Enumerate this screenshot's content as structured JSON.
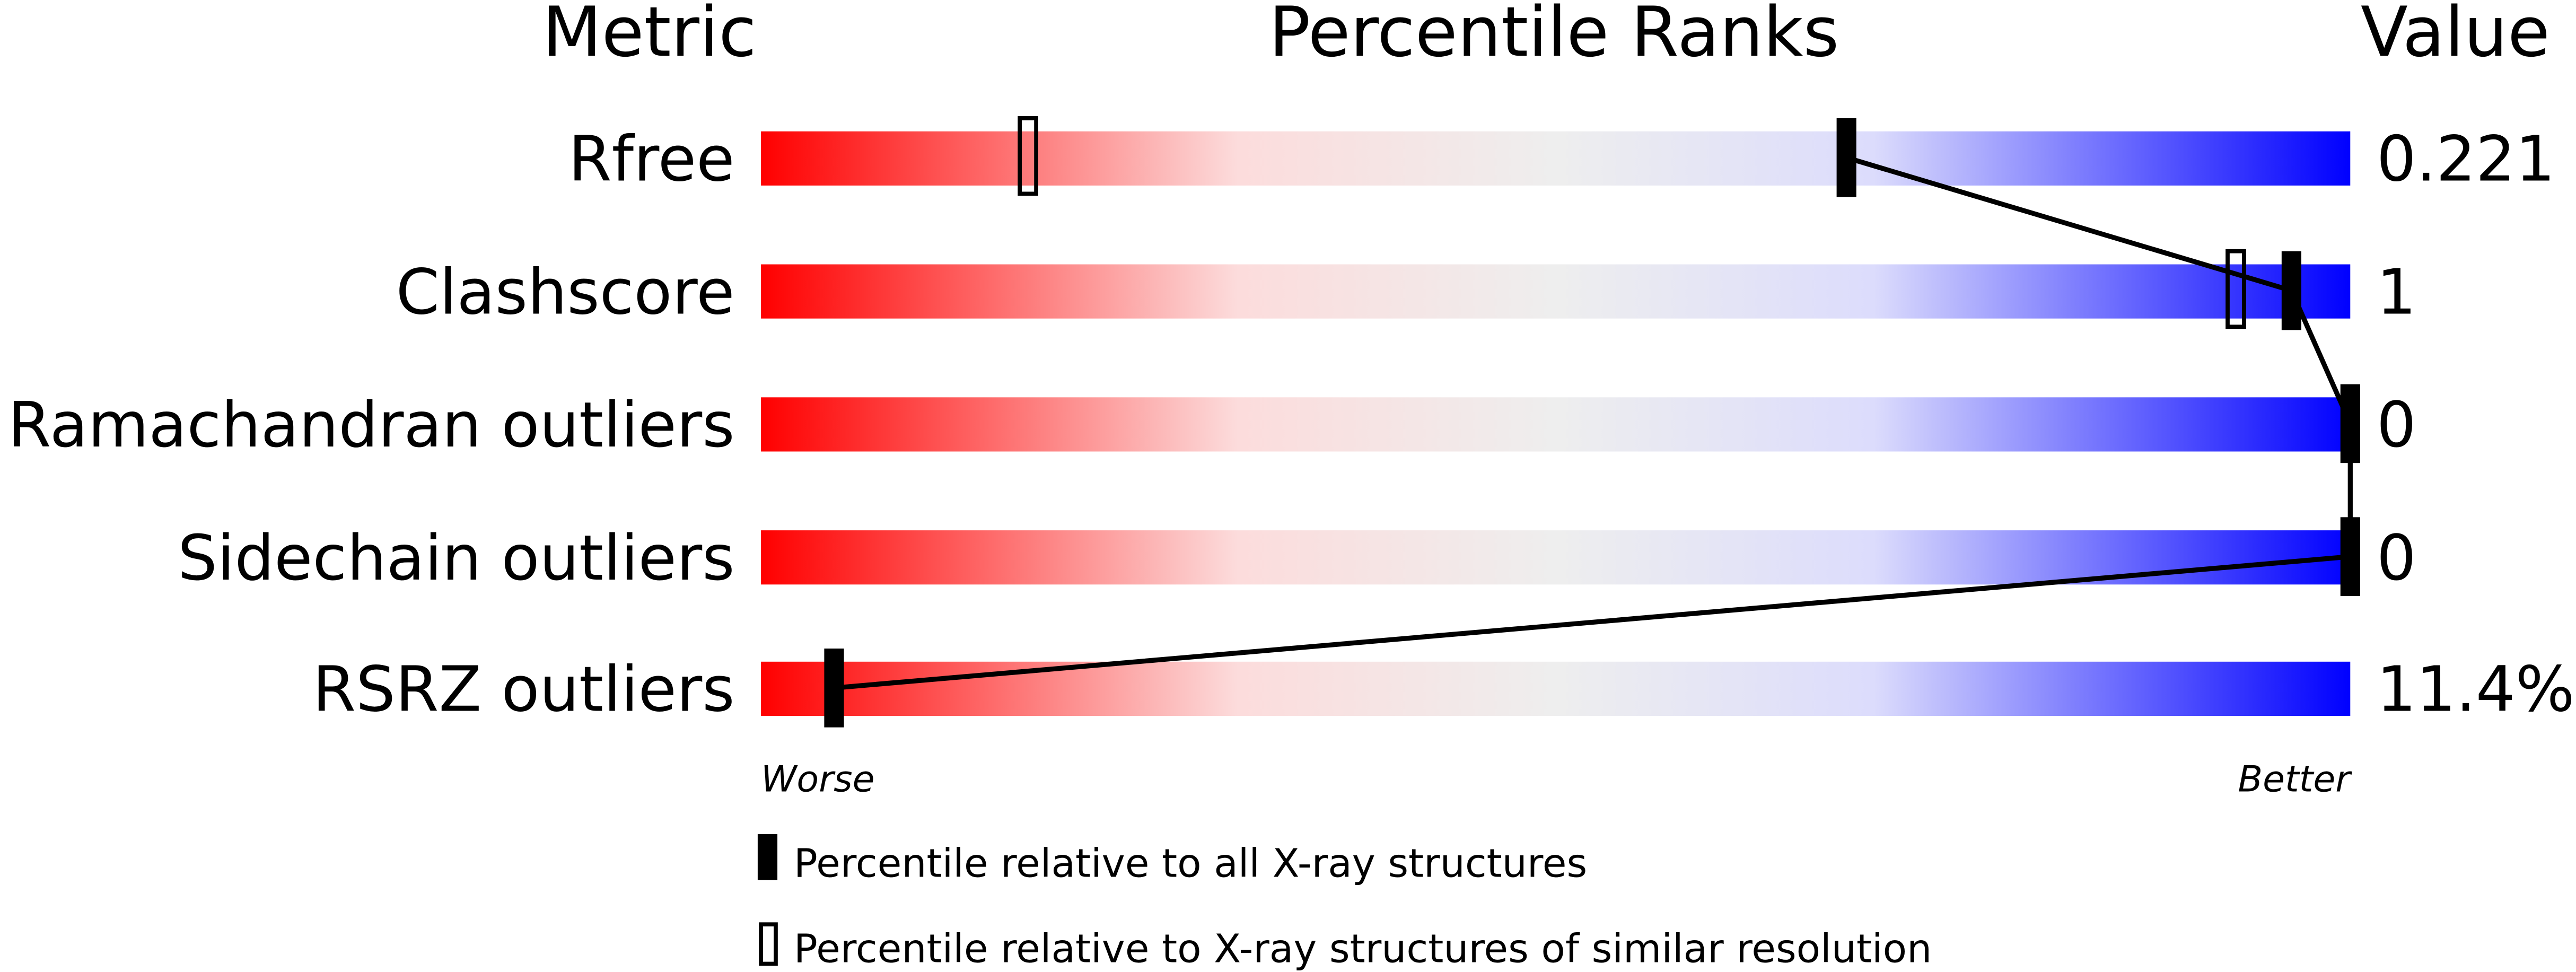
{
  "chart_data": {
    "type": "percentile-slider",
    "headers": {
      "metric": "Metric",
      "ranks": "Percentile Ranks",
      "value": "Value"
    },
    "xlim": [
      0,
      100
    ],
    "axis_labels": {
      "left": "Worse",
      "right": "Better"
    },
    "metrics": [
      {
        "name": "Rfree",
        "value": "0.221",
        "percentile_all": 68.3,
        "percentile_similar": 16.8
      },
      {
        "name": "Clashscore",
        "value": "1",
        "percentile_all": 96.3,
        "percentile_similar": 92.8
      },
      {
        "name": "Ramachandran outliers",
        "value": "0",
        "percentile_all": 100,
        "percentile_similar": null
      },
      {
        "name": "Sidechain outliers",
        "value": "0",
        "percentile_all": 100,
        "percentile_similar": null
      },
      {
        "name": "RSRZ outliers",
        "value": "11.4%",
        "percentile_all": 4.6,
        "percentile_similar": null
      }
    ],
    "legend": [
      {
        "marker": "filled",
        "label": "Percentile relative to all X-ray structures"
      },
      {
        "marker": "open",
        "label": "Percentile relative to X-ray structures of similar resolution"
      }
    ],
    "colors": {
      "worse": "#ff0000",
      "middle": "#eeeeee",
      "better": "#0000ff",
      "marker": "#000000"
    }
  }
}
